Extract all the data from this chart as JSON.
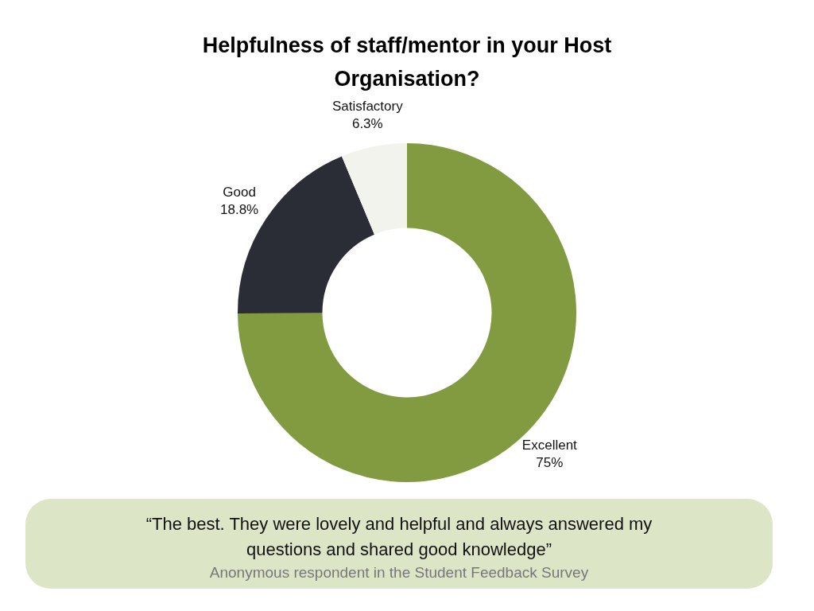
{
  "chart_data": {
    "type": "donut",
    "title": "Helpfulness of staff/mentor in your Host Organisation?",
    "categories": [
      "Excellent",
      "Good",
      "Satisfactory"
    ],
    "values": [
      75,
      18.8,
      6.3
    ],
    "colors": [
      "#829b40",
      "#2a2d35",
      "#f3f3ee"
    ],
    "value_labels": [
      "75%",
      "18.8%",
      "6.3%"
    ],
    "legend": false,
    "annotations": [
      "“The best. They were lovely and helpful and always answered my questions and shared good knowledge”",
      "Anonymous respondent in the Student Feedback Survey"
    ]
  }
}
